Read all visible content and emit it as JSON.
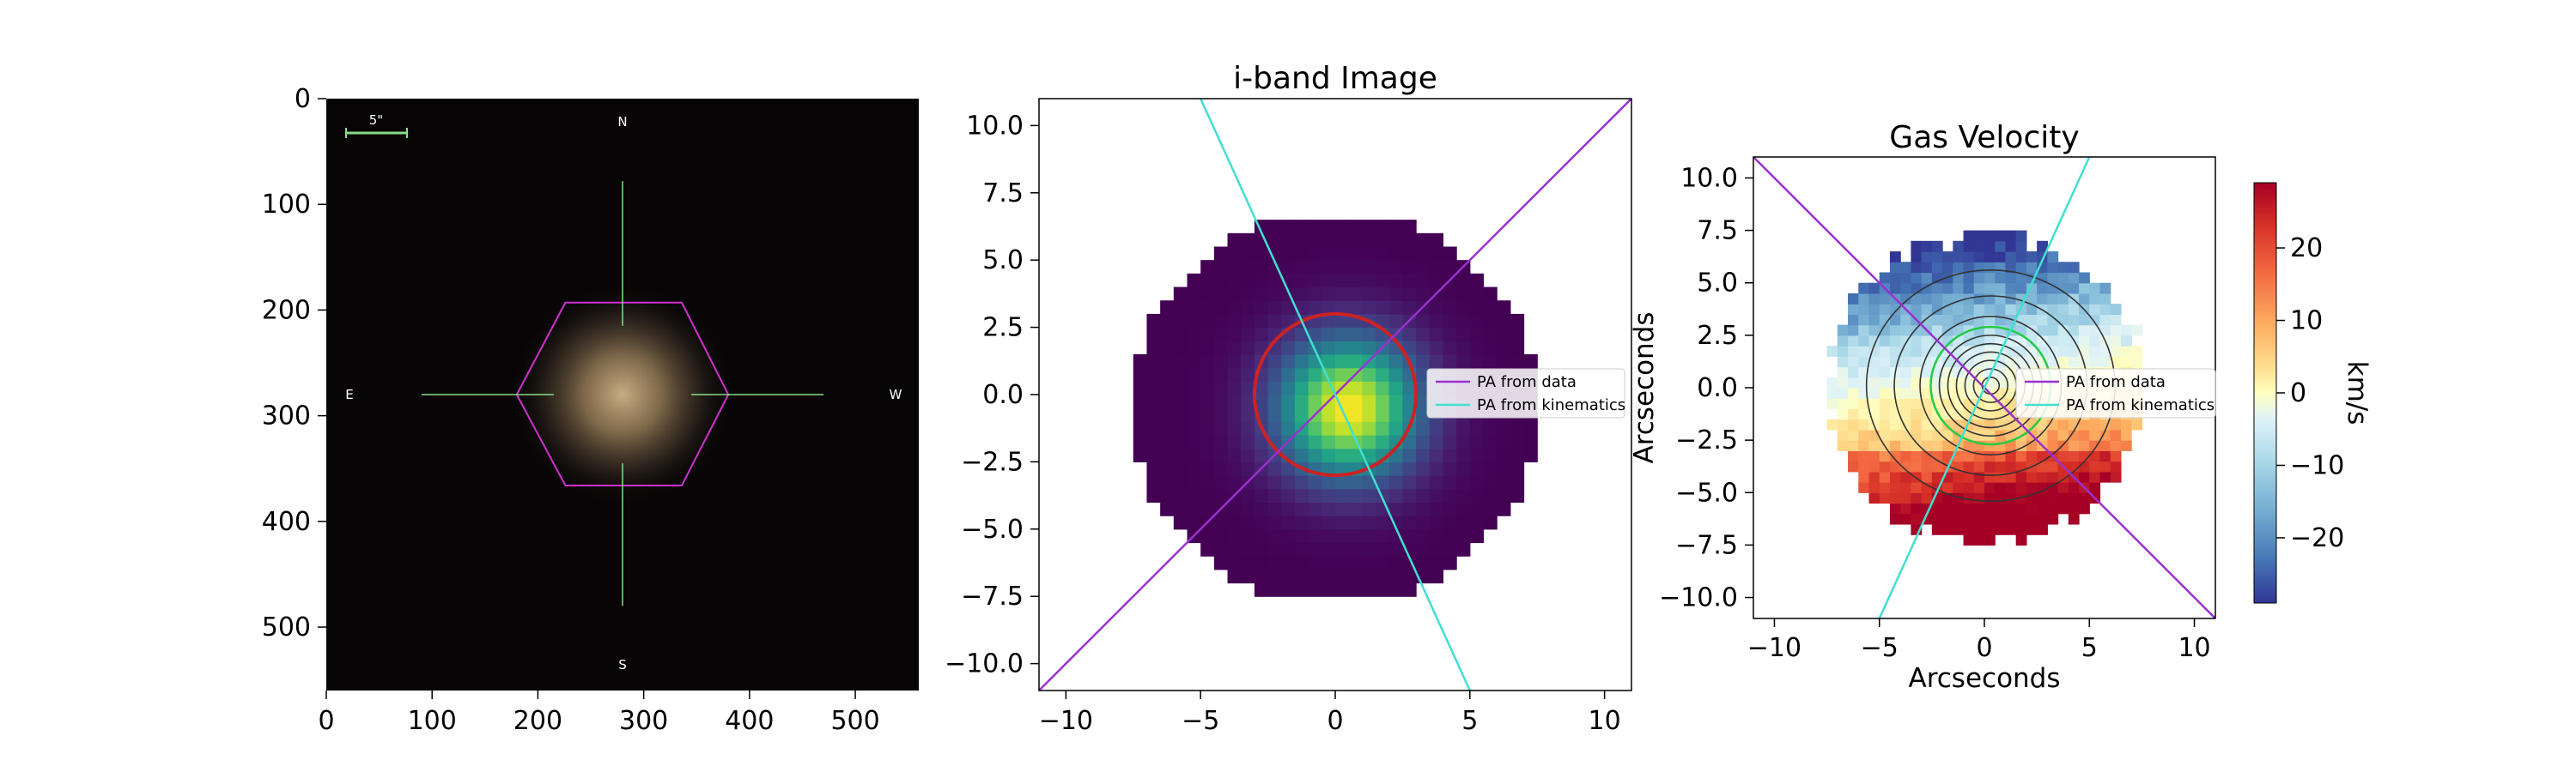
{
  "colors": {
    "pa_data": "#9b30d0",
    "pa_kinematics": "#40e0d0",
    "hexagon": "#d030d0",
    "circle": "#cc2222",
    "crosshair": "#88dd88",
    "contour": "#333333",
    "contour_inner": "#22cc44"
  },
  "chart_data": [
    {
      "type": "other",
      "panel": "sky-image",
      "xlim": [
        0,
        560
      ],
      "ylim": [
        560,
        0
      ],
      "xticks": [
        "0",
        "100",
        "200",
        "300",
        "400",
        "500"
      ],
      "yticks": [
        "0",
        "100",
        "200",
        "300",
        "400",
        "500"
      ],
      "xtick_values": [
        0,
        100,
        200,
        300,
        400,
        500
      ],
      "ytick_values": [
        0,
        100,
        200,
        300,
        400,
        500
      ],
      "compass": {
        "north": "N",
        "south": "S",
        "east": "E",
        "west": "W"
      },
      "scalebar_label": "5\"",
      "galaxy_center": [
        280,
        280
      ],
      "hexagon_vertices": [
        [
          180,
          280
        ],
        [
          226,
          193
        ],
        [
          336,
          193
        ],
        [
          380,
          280
        ],
        [
          336,
          366
        ],
        [
          226,
          366
        ]
      ]
    },
    {
      "type": "heatmap",
      "panel": "i-band",
      "title": "i-band Image",
      "xlim": [
        -11,
        11
      ],
      "ylim": [
        11,
        -11
      ],
      "xticks": [
        "−10",
        "−5",
        "0",
        "5",
        "10"
      ],
      "xtick_values": [
        -10,
        -5,
        0,
        5,
        10
      ],
      "yticks": [
        "−10.0",
        "−7.5",
        "−5.0",
        "−2.5",
        "0.0",
        "2.5",
        "5.0",
        "7.5",
        "10.0"
      ],
      "ytick_values": [
        -10,
        -7.5,
        -5,
        -2.5,
        0,
        2.5,
        5,
        7.5,
        10
      ],
      "peak_center": [
        0.5,
        0
      ],
      "circle": {
        "center": [
          0,
          0
        ],
        "radius": 3
      },
      "lines": [
        {
          "name": "PA from data",
          "p1": [
            -11,
            -11
          ],
          "p2": [
            11,
            11
          ]
        },
        {
          "name": "PA from kinematics",
          "p1": [
            -5,
            11
          ],
          "p2": [
            5,
            -11
          ]
        }
      ],
      "legend": [
        "PA from data",
        "PA from kinematics"
      ]
    },
    {
      "type": "heatmap",
      "panel": "gas-velocity",
      "title": "Gas Velocity",
      "xlabel": "Arcseconds",
      "ylabel": "Arcseconds",
      "xlim": [
        -11,
        11
      ],
      "ylim": [
        -11,
        11
      ],
      "xticks": [
        "−10",
        "−5",
        "0",
        "5",
        "10"
      ],
      "xtick_values": [
        -10,
        -5,
        0,
        5,
        10
      ],
      "yticks": [
        "10.0",
        "7.5",
        "5.0",
        "2.5",
        "0.0",
        "−2.5",
        "−5.0",
        "−7.5",
        "−10.0"
      ],
      "ytick_values": [
        10,
        7.5,
        5,
        2.5,
        0,
        -2.5,
        -5,
        -7.5,
        -10
      ],
      "colorbar": {
        "label": "km/s",
        "range": [
          -29,
          29
        ],
        "ticks": [
          "20",
          "10",
          "0",
          "−10",
          "−20"
        ],
        "tick_values": [
          20,
          10,
          0,
          -10,
          -20
        ]
      },
      "lines": [
        {
          "name": "PA from data",
          "p1": [
            -11,
            11
          ],
          "p2": [
            11,
            -11
          ]
        },
        {
          "name": "PA from kinematics",
          "p1": [
            -5,
            -11
          ],
          "p2": [
            5,
            11
          ]
        }
      ],
      "legend": [
        "PA from data",
        "PA from kinematics"
      ]
    }
  ]
}
